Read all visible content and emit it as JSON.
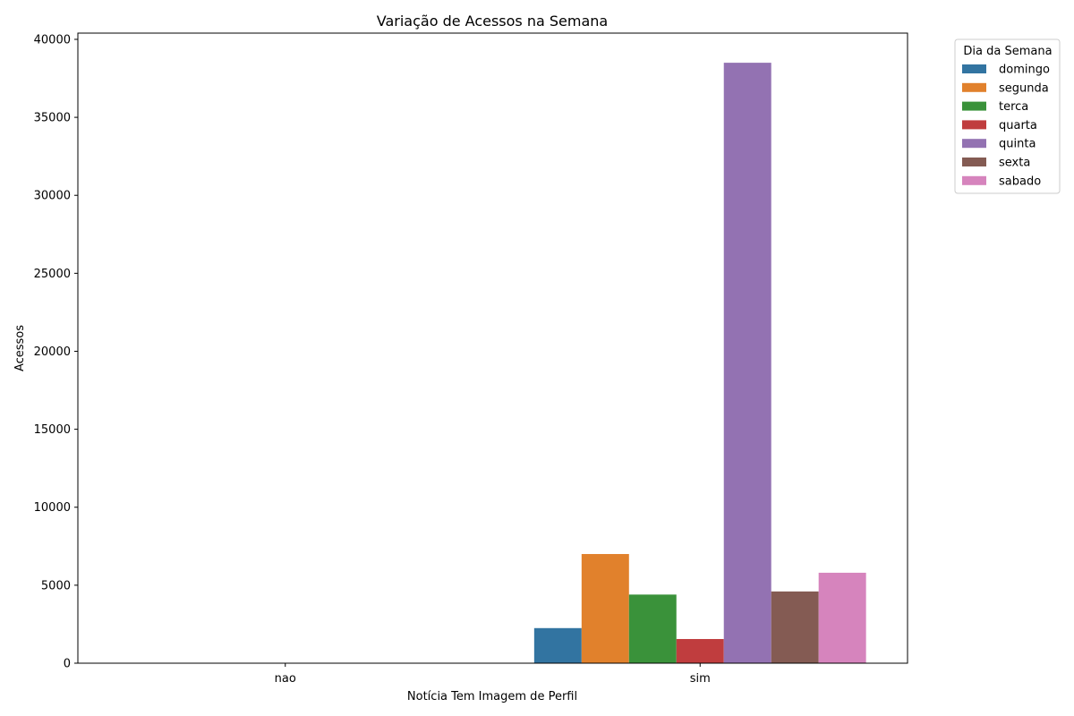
{
  "chart_data": {
    "type": "bar",
    "title": "Variação de Acessos na Semana",
    "xlabel": "Notícia Tem Imagem de Perfil",
    "ylabel": "Acessos",
    "categories": [
      "nao",
      "sim"
    ],
    "ylim": [
      0,
      40400
    ],
    "yticks": [
      0,
      5000,
      10000,
      15000,
      20000,
      25000,
      30000,
      35000,
      40000
    ],
    "grid": false,
    "legend": {
      "title": "Dia da Semana",
      "placement": "outside-top-right"
    },
    "series": [
      {
        "name": "domingo",
        "color": "#3274a1",
        "values": [
          0,
          2250
        ]
      },
      {
        "name": "segunda",
        "color": "#e1812c",
        "values": [
          0,
          7000
        ]
      },
      {
        "name": "terca",
        "color": "#3a923a",
        "values": [
          0,
          4400
        ]
      },
      {
        "name": "quarta",
        "color": "#c03d3e",
        "values": [
          0,
          1550
        ]
      },
      {
        "name": "quinta",
        "color": "#9372b2",
        "values": [
          0,
          38500
        ]
      },
      {
        "name": "sexta",
        "color": "#845b53",
        "values": [
          0,
          4600
        ]
      },
      {
        "name": "sabado",
        "color": "#d684bd",
        "values": [
          0,
          5800
        ]
      }
    ]
  }
}
